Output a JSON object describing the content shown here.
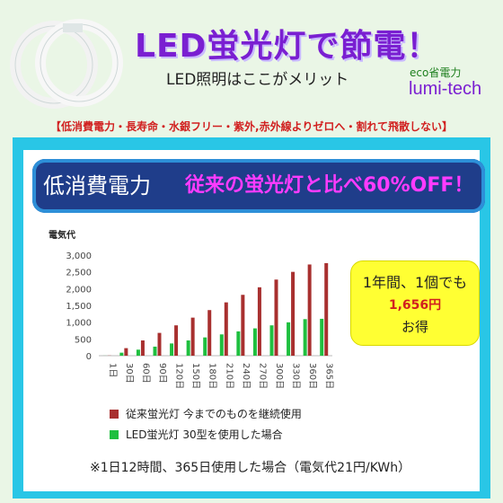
{
  "header": {
    "title": "LED蛍光灯で節電！",
    "subtitle": "LED照明はここがメリット",
    "eco": "eco省電力",
    "brand": "lumi-tech"
  },
  "features": "【低消費電力・長寿命・水銀フリー・紫外,赤外線よりゼロへ・割れて飛散しない】",
  "banner": {
    "left": "低消費電力",
    "right": "従来の蛍光灯と比べ60%OFF！"
  },
  "callout": {
    "line1": "1年間、1個でも",
    "line2": "1,656円",
    "line3": "お得"
  },
  "chart_data": {
    "type": "bar",
    "ylabel": "電気代",
    "ylim": [
      0,
      3000
    ],
    "yticks": [
      "3,000",
      "2,500",
      "2,000",
      "1,500",
      "1,000",
      "500",
      "0"
    ],
    "categories": [
      "1日",
      "30日",
      "60日",
      "90日",
      "120日",
      "150日",
      "180日",
      "210日",
      "240日",
      "270日",
      "300日",
      "330日",
      "360日",
      "365日"
    ],
    "series": [
      {
        "name": "従来蛍光灯 今までのものを継続使用",
        "color": "#a8302f",
        "values": [
          5,
          225,
          455,
          680,
          905,
          1135,
          1360,
          1590,
          1815,
          2040,
          2270,
          2500,
          2720,
          2760
        ]
      },
      {
        "name": "LED蛍光灯 30型を使用した場合",
        "color": "#1fbf3f",
        "values": [
          2,
          90,
          180,
          270,
          365,
          455,
          545,
          635,
          725,
          815,
          905,
          995,
          1090,
          1100
        ]
      }
    ],
    "legend_position": "bottom-left",
    "grid": false
  },
  "footnote": "※1日12時間、365日使用した場合（電気代21円/KWh）"
}
